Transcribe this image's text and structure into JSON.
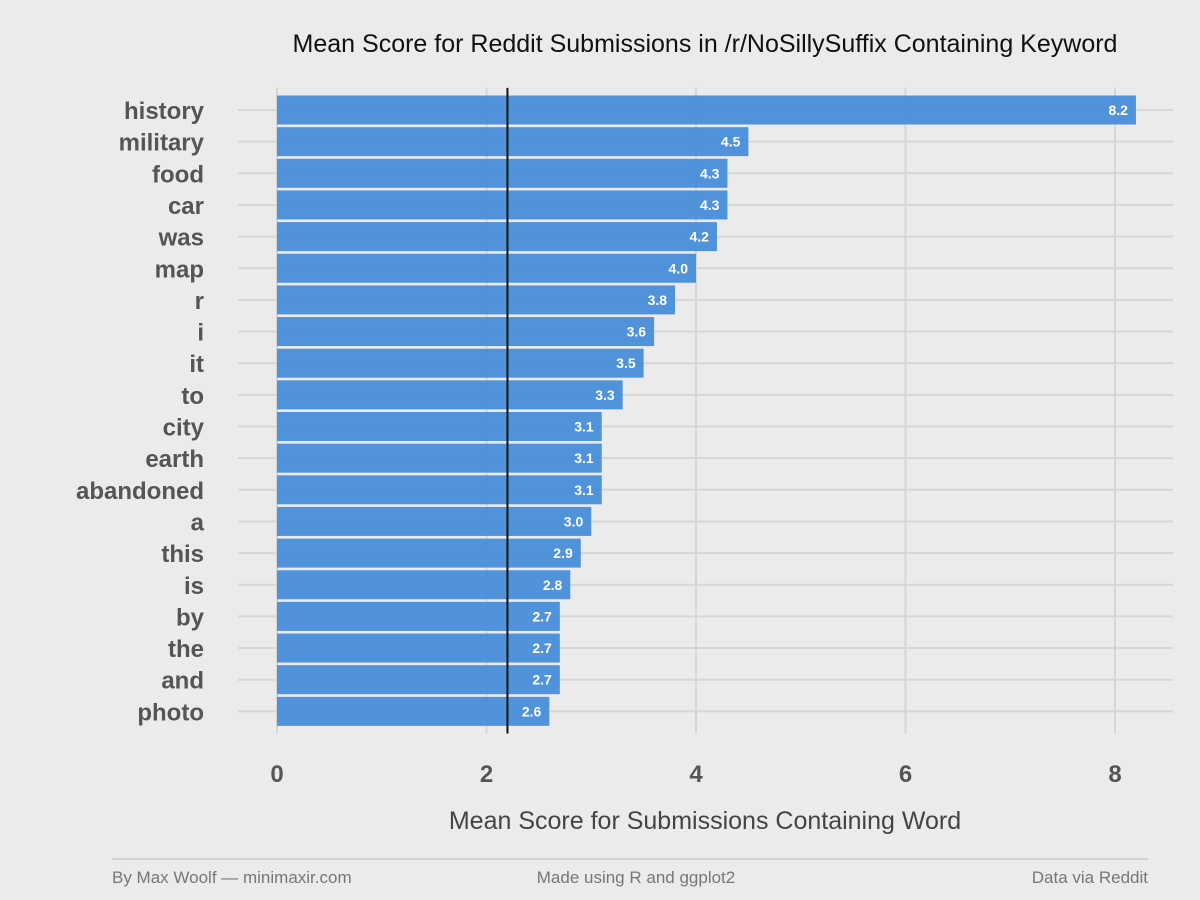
{
  "chart_data": {
    "type": "bar",
    "orientation": "horizontal",
    "title": "Mean Score for Reddit Submissions in /r/NoSillySuffix Containing Keyword",
    "xlabel": "Mean Score for Submissions Containing Word",
    "ylabel": "",
    "categories": [
      "history",
      "military",
      "food",
      "car",
      "was",
      "map",
      "r",
      "i",
      "it",
      "to",
      "city",
      "earth",
      "abandoned",
      "a",
      "this",
      "is",
      "by",
      "the",
      "and",
      "photo"
    ],
    "values": [
      8.2,
      4.5,
      4.3,
      4.3,
      4.2,
      4.0,
      3.8,
      3.6,
      3.5,
      3.3,
      3.1,
      3.1,
      3.1,
      3.0,
      2.9,
      2.8,
      2.7,
      2.7,
      2.7,
      2.6
    ],
    "value_labels": [
      "8.2",
      "4.5",
      "4.3",
      "4.3",
      "4.2",
      "4.0",
      "3.8",
      "3.6",
      "3.5",
      "3.3",
      "3.1",
      "3.1",
      "3.1",
      "3.0",
      "2.9",
      "2.8",
      "2.7",
      "2.7",
      "2.7",
      "2.6"
    ],
    "xlim": [
      0,
      8.3
    ],
    "xticks": [
      0,
      2,
      4,
      6,
      8
    ],
    "xtick_labels": [
      "0",
      "2",
      "4",
      "6",
      "8"
    ],
    "reference_line": 2.2,
    "grid": true,
    "colors": {
      "bar": "#4a90d9",
      "reference_line": "#111111",
      "background": "#ebebeb",
      "grid": "#d6d6d6"
    }
  },
  "footer": {
    "left": "By Max Woolf — minimaxir.com",
    "center": "Made using R and ggplot2",
    "right": "Data via Reddit"
  }
}
